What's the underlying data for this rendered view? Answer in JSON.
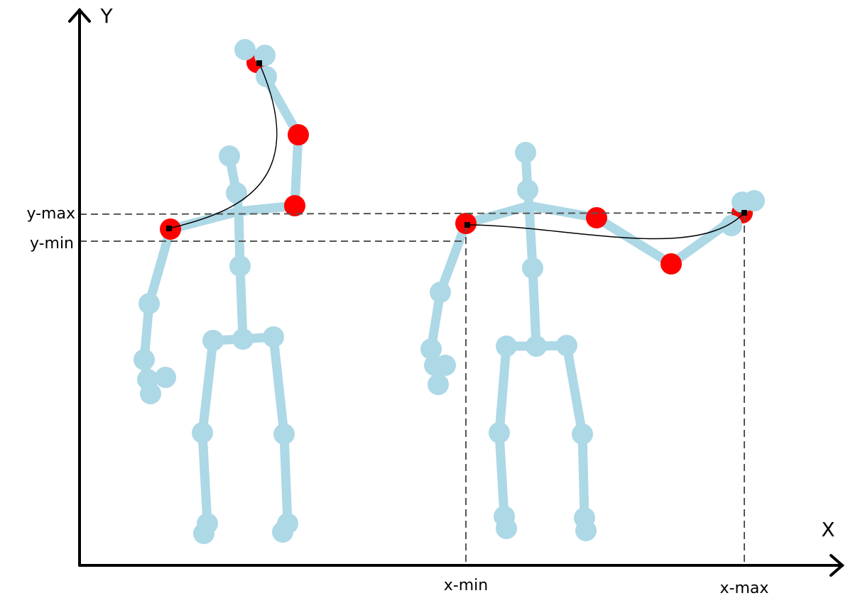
{
  "axes": {
    "y_label": "Y",
    "x_label": "X"
  },
  "markers": {
    "y_max": "y-max",
    "y_min": "y-min",
    "x_min": "x-min",
    "x_max": "x-max"
  }
}
